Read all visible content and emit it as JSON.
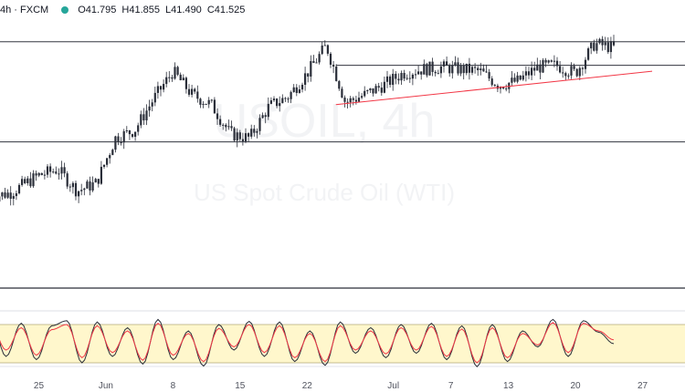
{
  "header": {
    "interval": "4h",
    "exchange": "FXCM",
    "status_color": "#26a69a",
    "ohlc": [
      {
        "label": "O",
        "value": "41.795"
      },
      {
        "label": "H",
        "value": "41.855"
      },
      {
        "label": "L",
        "value": "41.490"
      },
      {
        "label": "C",
        "value": "41.525"
      }
    ]
  },
  "watermark": {
    "symbol": "USOIL, 4h",
    "description": "US Spot Crude Oil (WTI)"
  },
  "colors": {
    "up": "#26a69a",
    "down": "#ef5350",
    "candle_body": "#2a2e39",
    "level_line": "#131722",
    "trend_line": "#f23645",
    "stoch_k": "#2a2e39",
    "stoch_d": "#f23645",
    "stoch_band_fill": "#fff7cc",
    "stoch_band_border": "#b2a879"
  },
  "chart_data": [
    {
      "type": "candlestick",
      "title": "USOIL, 4h",
      "subtitle": "US Spot Crude Oil (WTI)",
      "grid": false,
      "x_axis": {
        "tick_labels": [
          "25",
          "Jun",
          "8",
          "15",
          "22",
          "Jul",
          "7",
          "13",
          "20",
          "27"
        ],
        "tick_dates": [
          "2020-05-25",
          "2020-06-01",
          "2020-06-08",
          "2020-06-15",
          "2020-06-22",
          "2020-07-01",
          "2020-07-07",
          "2020-07-13",
          "2020-07-20",
          "2020-07-27"
        ]
      },
      "ylim": [
        30.0,
        43.0
      ],
      "horizontal_levels": [
        41.8,
        40.6,
        36.7
      ],
      "trend_line": {
        "from": {
          "date": "2020-06-25",
          "value": 38.6
        },
        "to": {
          "date": "2020-07-28",
          "value": 40.3
        }
      },
      "series": [
        {
          "date": "2020-05-20",
          "close": 33.9
        },
        {
          "date": "2020-05-22",
          "close": 34.1
        },
        {
          "date": "2020-05-25",
          "close": 35.0
        },
        {
          "date": "2020-05-27",
          "close": 35.3
        },
        {
          "date": "2020-05-29",
          "close": 34.2
        },
        {
          "date": "2020-05-31",
          "close": 34.6
        },
        {
          "date": "2020-06-02",
          "close": 36.9
        },
        {
          "date": "2020-06-04",
          "close": 37.3
        },
        {
          "date": "2020-06-06",
          "close": 38.9
        },
        {
          "date": "2020-06-08",
          "close": 40.3
        },
        {
          "date": "2020-06-10",
          "close": 39.1
        },
        {
          "date": "2020-06-12",
          "close": 38.6
        },
        {
          "date": "2020-06-14",
          "close": 37.1
        },
        {
          "date": "2020-06-16",
          "close": 36.9
        },
        {
          "date": "2020-06-18",
          "close": 38.5
        },
        {
          "date": "2020-06-20",
          "close": 39.0
        },
        {
          "date": "2020-06-22",
          "close": 40.2
        },
        {
          "date": "2020-06-24",
          "close": 41.6
        },
        {
          "date": "2020-06-26",
          "close": 38.7
        },
        {
          "date": "2020-06-28",
          "close": 39.1
        },
        {
          "date": "2020-06-30",
          "close": 39.6
        },
        {
          "date": "2020-07-02",
          "close": 40.2
        },
        {
          "date": "2020-07-04",
          "close": 40.4
        },
        {
          "date": "2020-07-06",
          "close": 40.5
        },
        {
          "date": "2020-07-08",
          "close": 40.4
        },
        {
          "date": "2020-07-10",
          "close": 40.3
        },
        {
          "date": "2020-07-12",
          "close": 39.6
        },
        {
          "date": "2020-07-14",
          "close": 39.8
        },
        {
          "date": "2020-07-16",
          "close": 40.5
        },
        {
          "date": "2020-07-18",
          "close": 40.6
        },
        {
          "date": "2020-07-20",
          "close": 40.2
        },
        {
          "date": "2020-07-22",
          "close": 41.7
        },
        {
          "date": "2020-07-24",
          "close": 41.5
        }
      ]
    },
    {
      "type": "line",
      "title": "",
      "ylim": [
        0,
        100
      ],
      "overbought": 80,
      "oversold": 20,
      "series": [
        {
          "name": "",
          "values": [
            88,
            30,
            82,
            25,
            78,
            86,
            20,
            84,
            30,
            75,
            18,
            88,
            25,
            70,
            15,
            80,
            40,
            85,
            30,
            84,
            22,
            70,
            16,
            84,
            35,
            75,
            28,
            80,
            35,
            82,
            25,
            78,
            14,
            80,
            22,
            70,
            45,
            88,
            30,
            86,
            68,
            50
          ]
        },
        {
          "name": "",
          "values": [
            80,
            40,
            75,
            32,
            72,
            80,
            28,
            78,
            36,
            70,
            24,
            82,
            32,
            66,
            22,
            74,
            45,
            80,
            36,
            78,
            28,
            66,
            22,
            78,
            40,
            70,
            34,
            75,
            40,
            77,
            30,
            73,
            20,
            75,
            28,
            66,
            48,
            83,
            36,
            82,
            70,
            56
          ]
        }
      ]
    }
  ]
}
